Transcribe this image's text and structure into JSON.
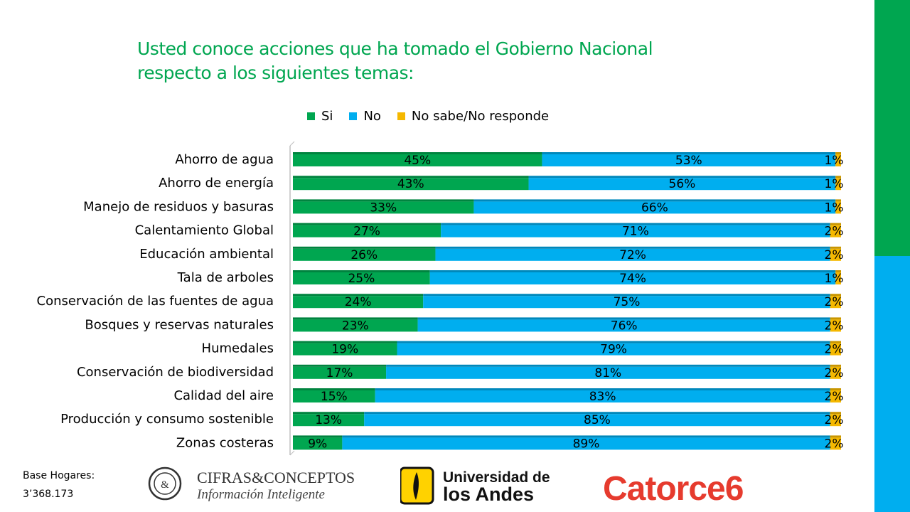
{
  "title": "Usted conoce acciones que ha tomado el Gobierno Nacional respecto a los siguientes temas:",
  "title_lines": [
    "Usted conoce acciones que ha tomado el Gobierno Nacional",
    "respecto a los siguientes temas:"
  ],
  "colors": {
    "si": "#00A650",
    "no": "#00AEEF",
    "ns": "#F5B800",
    "accent_green": "#00A650",
    "accent_blue": "#00AEEF"
  },
  "chart_data": {
    "type": "bar",
    "orientation": "horizontal",
    "stacked": true,
    "title": "Usted conoce acciones que ha tomado el Gobierno Nacional respecto a los siguientes temas:",
    "legend_position": "top",
    "categories": [
      "Ahorro de agua",
      "Ahorro de energía",
      "Manejo de residuos y basuras",
      "Calentamiento Global",
      "Educación ambiental",
      "Tala de arboles",
      "Conservación de las fuentes de agua",
      "Bosques y reservas naturales",
      "Humedales",
      "Conservación de biodiversidad",
      "Calidad del aire",
      "Producción y consumo sostenible",
      "Zonas costeras"
    ],
    "series": [
      {
        "name": "Si",
        "values": [
          45,
          43,
          33,
          27,
          26,
          25,
          24,
          23,
          19,
          17,
          15,
          13,
          9
        ]
      },
      {
        "name": "No",
        "values": [
          53,
          56,
          66,
          71,
          72,
          74,
          75,
          76,
          79,
          81,
          83,
          85,
          89
        ]
      },
      {
        "name": "No sabe/No responde",
        "values": [
          1,
          1,
          1,
          2,
          2,
          1,
          2,
          2,
          2,
          2,
          2,
          2,
          2
        ]
      }
    ],
    "value_suffix": "%"
  },
  "footer": {
    "base_label": "Base Hogares:",
    "base_value": "3’368.173"
  },
  "logos": {
    "cifras_line1": "CIFRAS&CONCEPTOS",
    "cifras_line2": "Información Inteligente",
    "cifras_mark": "&",
    "andes_line1": "Universidad de",
    "andes_line2": "los Andes",
    "catorce": "Catorce6"
  }
}
